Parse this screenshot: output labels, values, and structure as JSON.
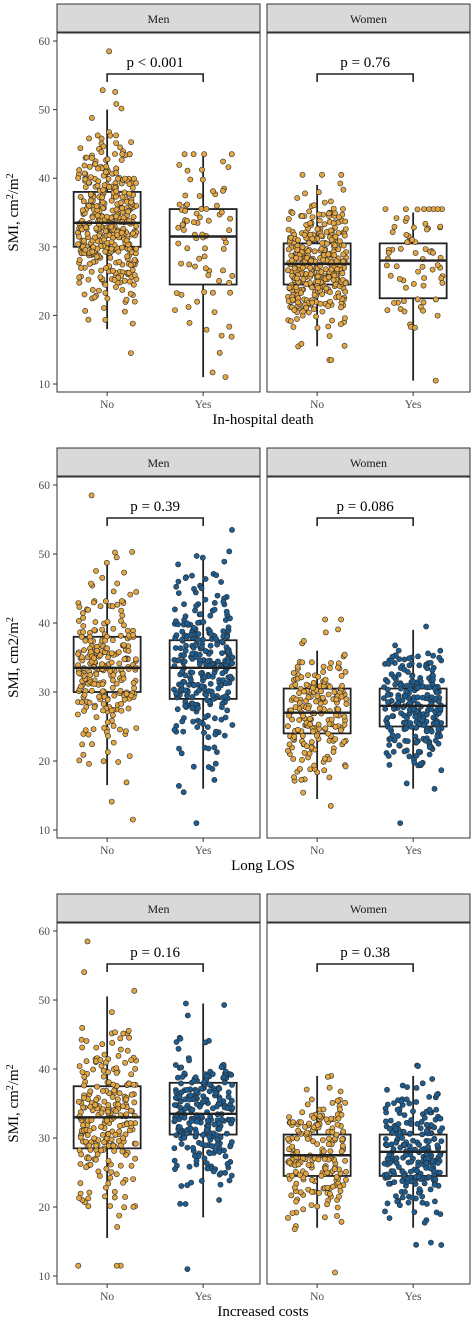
{
  "chart_data": [
    {
      "type": "box",
      "xlabel": "In-hospital death",
      "ylabel": "SMI, cm²/m²",
      "ylim": [
        10,
        60
      ],
      "yticks": [
        10,
        20,
        30,
        40,
        50,
        60
      ],
      "categories": [
        "No",
        "Yes"
      ],
      "point_colors": [
        "#e3a641",
        "#e3a641"
      ],
      "panels": [
        {
          "strip": "Men",
          "p_label": "p < 0.001",
          "boxes": [
            {
              "category": "No",
              "q1": 30,
              "median": 33.5,
              "q3": 38,
              "whisker_low": 18,
              "whisker_high": 50,
              "min": 14.5,
              "max": 58.5,
              "n": 420
            },
            {
              "category": "Yes",
              "q1": 24.5,
              "median": 31.5,
              "q3": 35.5,
              "whisker_low": 11,
              "whisker_high": 43.5,
              "min": 11,
              "max": 43.5,
              "n": 80
            }
          ]
        },
        {
          "strip": "Women",
          "p_label": "p = 0.76",
          "boxes": [
            {
              "category": "No",
              "q1": 24.5,
              "median": 27.5,
              "q3": 30.5,
              "whisker_low": 15.5,
              "whisker_high": 39,
              "min": 13.5,
              "max": 40.5,
              "n": 380
            },
            {
              "category": "Yes",
              "q1": 22.5,
              "median": 28,
              "q3": 30.5,
              "whisker_low": 10.5,
              "whisker_high": 35,
              "min": 10.5,
              "max": 35.5,
              "n": 70
            }
          ]
        }
      ]
    },
    {
      "type": "box",
      "xlabel": "Long LOS",
      "ylabel": "SMI, cm2/m²",
      "ylim": [
        10,
        60
      ],
      "yticks": [
        10,
        20,
        30,
        40,
        50,
        60
      ],
      "categories": [
        "No",
        "Yes"
      ],
      "point_colors": [
        "#e3a641",
        "#1c5e93"
      ],
      "panels": [
        {
          "strip": "Men",
          "p_label": "p = 0.39",
          "boxes": [
            {
              "category": "No",
              "q1": 30,
              "median": 33.5,
              "q3": 38,
              "whisker_low": 16.5,
              "whisker_high": 49,
              "min": 11.5,
              "max": 58.5,
              "n": 260
            },
            {
              "category": "Yes",
              "q1": 29,
              "median": 33.5,
              "q3": 37.5,
              "whisker_low": 16,
              "whisker_high": 49.5,
              "min": 11,
              "max": 53.5,
              "n": 300
            }
          ]
        },
        {
          "strip": "Women",
          "p_label": "p = 0.086",
          "boxes": [
            {
              "category": "No",
              "q1": 24,
              "median": 27,
              "q3": 30.5,
              "whisker_low": 14.5,
              "whisker_high": 36,
              "min": 13.5,
              "max": 40.5,
              "n": 200
            },
            {
              "category": "Yes",
              "q1": 25,
              "median": 28,
              "q3": 30.5,
              "whisker_low": 16,
              "whisker_high": 39,
              "min": 11,
              "max": 39.5,
              "n": 250
            }
          ]
        }
      ]
    },
    {
      "type": "box",
      "xlabel": "Increased costs",
      "ylabel": "SMI, cm²/m²",
      "ylim": [
        10,
        60
      ],
      "yticks": [
        10,
        20,
        30,
        40,
        50,
        60
      ],
      "categories": [
        "No",
        "Yes"
      ],
      "point_colors": [
        "#e3a641",
        "#1c5e93"
      ],
      "panels": [
        {
          "strip": "Men",
          "p_label": "p = 0.16",
          "boxes": [
            {
              "category": "No",
              "q1": 28.5,
              "median": 33,
              "q3": 37.5,
              "whisker_low": 15.5,
              "whisker_high": 50.5,
              "min": 11.5,
              "max": 58.5,
              "n": 260
            },
            {
              "category": "Yes",
              "q1": 30.5,
              "median": 33.5,
              "q3": 38,
              "whisker_low": 18.5,
              "whisker_high": 49.5,
              "min": 11,
              "max": 49.5,
              "n": 260
            }
          ]
        },
        {
          "strip": "Women",
          "p_label": "p = 0.38",
          "boxes": [
            {
              "category": "No",
              "q1": 24.5,
              "median": 27.5,
              "q3": 30.5,
              "whisker_low": 17,
              "whisker_high": 39,
              "min": 10.5,
              "max": 39,
              "n": 200
            },
            {
              "category": "Yes",
              "q1": 24.5,
              "median": 28,
              "q3": 30.5,
              "whisker_low": 17,
              "whisker_high": 39,
              "min": 14.5,
              "max": 40.5,
              "n": 240
            }
          ]
        }
      ]
    }
  ]
}
